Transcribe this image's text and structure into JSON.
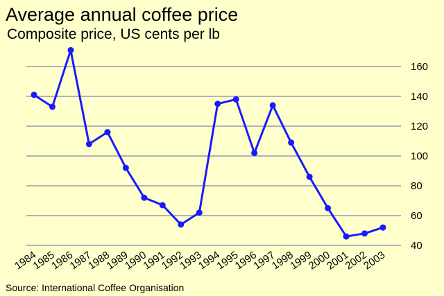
{
  "chart_data": {
    "type": "line",
    "title": "Average annual coffee price",
    "subtitle": "Composite price, US cents per lb",
    "source": "Source:  International Coffee Organisation",
    "x": [
      "1984",
      "1985",
      "1986",
      "1987",
      "1988",
      "1989",
      "1990",
      "1991",
      "1992",
      "1993",
      "1994",
      "1995",
      "1996",
      "1997",
      "1998",
      "1999",
      "2000",
      "2001",
      "2002",
      "2003"
    ],
    "series": [
      {
        "values": [
          141,
          133,
          171,
          108,
          116,
          92,
          72,
          67,
          54,
          62,
          135,
          138,
          102,
          134,
          109,
          86,
          65,
          46,
          48,
          52
        ]
      }
    ],
    "ylim": [
      40,
      170
    ],
    "yticks": [
      40,
      60,
      80,
      100,
      120,
      140,
      160
    ],
    "ylabel": "",
    "xlabel": "",
    "grid": true,
    "y_axis_side": "right",
    "colors": {
      "line": "#1a1aff",
      "background": "#ffffcc",
      "grid": "#9999b3"
    }
  }
}
